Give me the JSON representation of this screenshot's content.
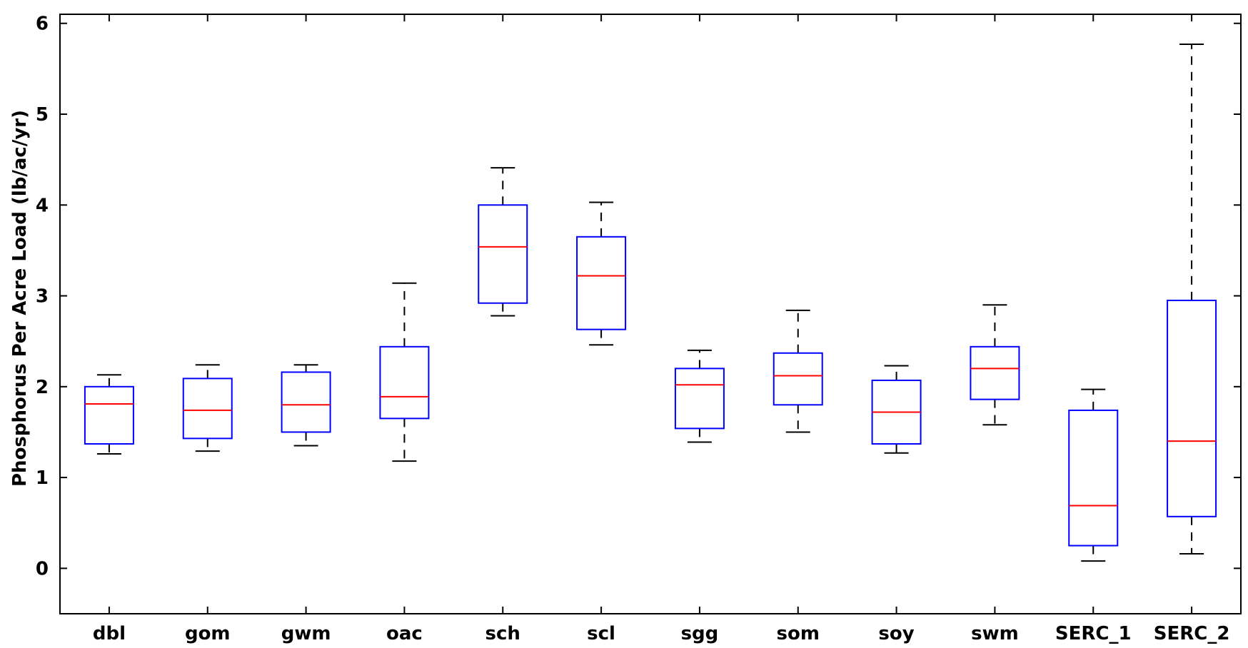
{
  "chart_data": {
    "type": "box",
    "title": "",
    "xlabel": "",
    "ylabel": "Phosphorus Per Acre Load (lb/ac/yr)",
    "ylim": [
      -0.5,
      6.1
    ],
    "yticks": [
      0,
      1,
      2,
      3,
      4,
      5,
      6
    ],
    "grid": false,
    "colors": {
      "box": "#0000ff",
      "median": "#ff0000",
      "whisker": "#000000",
      "axis": "#000000"
    },
    "categories": [
      "dbl",
      "gom",
      "gwm",
      "oac",
      "sch",
      "scl",
      "sgg",
      "som",
      "soy",
      "swm",
      "SERC_1",
      "SERC_2"
    ],
    "boxes": [
      {
        "label": "dbl",
        "min": 1.26,
        "q1": 1.37,
        "median": 1.81,
        "q3": 2.0,
        "max": 2.13
      },
      {
        "label": "gom",
        "min": 1.29,
        "q1": 1.43,
        "median": 1.74,
        "q3": 2.09,
        "max": 2.24
      },
      {
        "label": "gwm",
        "min": 1.35,
        "q1": 1.5,
        "median": 1.8,
        "q3": 2.16,
        "max": 2.24
      },
      {
        "label": "oac",
        "min": 1.18,
        "q1": 1.65,
        "median": 1.89,
        "q3": 2.44,
        "max": 3.14
      },
      {
        "label": "sch",
        "min": 2.78,
        "q1": 2.92,
        "median": 3.54,
        "q3": 4.0,
        "max": 4.41
      },
      {
        "label": "scl",
        "min": 2.46,
        "q1": 2.63,
        "median": 3.22,
        "q3": 3.65,
        "max": 4.03
      },
      {
        "label": "sgg",
        "min": 1.39,
        "q1": 1.54,
        "median": 2.02,
        "q3": 2.2,
        "max": 2.4
      },
      {
        "label": "som",
        "min": 1.5,
        "q1": 1.8,
        "median": 2.12,
        "q3": 2.37,
        "max": 2.84
      },
      {
        "label": "soy",
        "min": 1.27,
        "q1": 1.37,
        "median": 1.72,
        "q3": 2.07,
        "max": 2.23
      },
      {
        "label": "swm",
        "min": 1.58,
        "q1": 1.86,
        "median": 2.2,
        "q3": 2.44,
        "max": 2.9
      },
      {
        "label": "SERC_1",
        "min": 0.08,
        "q1": 0.25,
        "median": 0.69,
        "q3": 1.74,
        "max": 1.97
      },
      {
        "label": "SERC_2",
        "min": 0.16,
        "q1": 0.57,
        "median": 1.4,
        "q3": 2.95,
        "max": 5.77
      }
    ]
  }
}
